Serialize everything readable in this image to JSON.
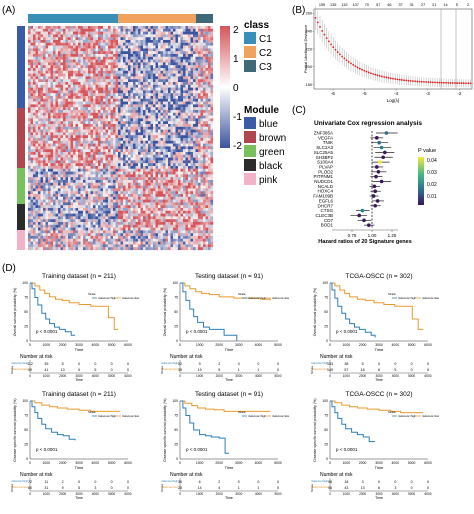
{
  "panels": {
    "A": {
      "label": "(A)",
      "class_bar_title": "class",
      "class_legend_title": "class",
      "classes": [
        {
          "name": "C1",
          "color": "#3a8fb7"
        },
        {
          "name": "C2",
          "color": "#f0a35e"
        },
        {
          "name": "C3",
          "color": "#3d6a76"
        }
      ],
      "colorbar_ticks": [
        "2",
        "1",
        "0",
        "-1",
        "-2"
      ],
      "module_legend_title": "Module",
      "modules": [
        {
          "name": "blue",
          "color": "#3a5ba8"
        },
        {
          "name": "brown",
          "color": "#b0474f"
        },
        {
          "name": "green",
          "color": "#79c15c"
        },
        {
          "name": "black",
          "color": "#2b2b2b"
        },
        {
          "name": "pink",
          "color": "#f3b2c8"
        }
      ],
      "heat_colors": {
        "high": "#d6545a",
        "mid": "#ffffff",
        "low": "#3b54a0"
      }
    },
    "B": {
      "label": "(B)",
      "top_ticks": [
        "155",
        "135",
        "115",
        "107",
        "70",
        "57",
        "46",
        "37",
        "31",
        "27",
        "21",
        "14",
        "5",
        "2"
      ],
      "ylabel": "Partial Likelihood Deviance",
      "xlabel": "Log(λ)",
      "x_ticks": [
        "-6",
        "-5",
        "-4",
        "-3",
        "-2"
      ],
      "y_ticks": [
        "180",
        "200",
        "220",
        "240",
        "260"
      ]
    },
    "C": {
      "label": "(C)",
      "title": "Univariate Cox regression analysis",
      "genes": [
        "ZNF385A",
        "VEGFA",
        "TNIK",
        "SLC2A3",
        "SLC25A5",
        "SH3BP2",
        "S100A4",
        "PLVAP",
        "PLOD2",
        "PITPNM1",
        "NUDCD1",
        "NCALD",
        "HOXC4",
        "FAM109B",
        "EGFL6",
        "DHCR7",
        "CTSG",
        "CLEC3B",
        "CD7",
        "BOD1"
      ],
      "legend_title": "P value",
      "legend_ticks": [
        "0.04",
        "0.03",
        "0.02",
        "0.01"
      ],
      "x_ticks": [
        "0.75",
        "1.00",
        "1.25"
      ],
      "xlabel": "Hazard ratios of 20 Signature genes"
    },
    "D": {
      "label": "(D)",
      "top_row_ylabel": "Overall survival probability (%)",
      "bottom_row_ylabel": "Disease specific survival probability (%)",
      "legend_title": "Strata",
      "legend_high": "riskscore=high",
      "legend_low": "riskscore=low",
      "xlabel": "Time",
      "risk_title": "Number at risk",
      "strata_label": "Strata",
      "pvalue": "p < 0.0001",
      "y_ticks": [
        "100",
        "75",
        "50",
        "25",
        "0"
      ],
      "plots": [
        {
          "title": "Training dataset (n = 211)",
          "x_ticks": [
            "0",
            "1000",
            "2000",
            "3000",
            "4000",
            "5000",
            "6000"
          ],
          "risk_high": [
            "112",
            "39",
            "5",
            "0",
            "0",
            "0",
            "0"
          ],
          "risk_low": [
            "99",
            "41",
            "13",
            "5",
            "5",
            "0",
            "0"
          ]
        },
        {
          "title": "Testing dataset (n = 91)",
          "x_ticks": [
            "0",
            "1000",
            "2000",
            "3000",
            "4000",
            "5000"
          ],
          "risk_high": [
            "52",
            "9",
            "2",
            "0",
            "0",
            "0"
          ],
          "risk_low": [
            "39",
            "19",
            "5",
            "1",
            "1",
            "0"
          ]
        },
        {
          "title": "TCGA-OSCC (n = 302)",
          "x_ticks": [
            "0",
            "1000",
            "2000",
            "3000",
            "4000",
            "5000",
            "6000"
          ],
          "risk_high": [
            "153",
            "38",
            "5",
            "0",
            "0",
            "0",
            "0"
          ],
          "risk_low": [
            "149",
            "57",
            "18",
            "6",
            "5",
            "0",
            "0"
          ]
        },
        {
          "title": "Training dataset (n = 211)",
          "x_ticks": [
            "0",
            "1000",
            "2000",
            "3000",
            "4000",
            "5000",
            "6000"
          ],
          "risk_high": [
            "72",
            "11",
            "2",
            "0",
            "0",
            "0",
            "0"
          ],
          "risk_low": [
            "80",
            "31",
            "9",
            "5",
            "3",
            "0",
            "0"
          ]
        },
        {
          "title": "Testing dataset (n = 91)",
          "x_ticks": [
            "0",
            "1000",
            "2000",
            "3000",
            "4000",
            "5000"
          ],
          "risk_high": [
            "36",
            "6",
            "2",
            "0",
            "0",
            "0"
          ],
          "risk_low": [
            "28",
            "14",
            "4",
            "1",
            "1",
            "0"
          ]
        },
        {
          "title": "TCGA-OSCC (n = 302)",
          "x_ticks": [
            "0",
            "1000",
            "2000",
            "3000",
            "4000",
            "5000",
            "6000"
          ],
          "risk_high": [
            "98",
            "18",
            "3",
            "0",
            "0",
            "0",
            "0"
          ],
          "risk_low": [
            "96",
            "43",
            "13",
            "6",
            "3",
            "0",
            "0"
          ]
        }
      ]
    },
    "colors": {
      "high": "#2b7fb8",
      "low": "#e79a2f"
    }
  }
}
